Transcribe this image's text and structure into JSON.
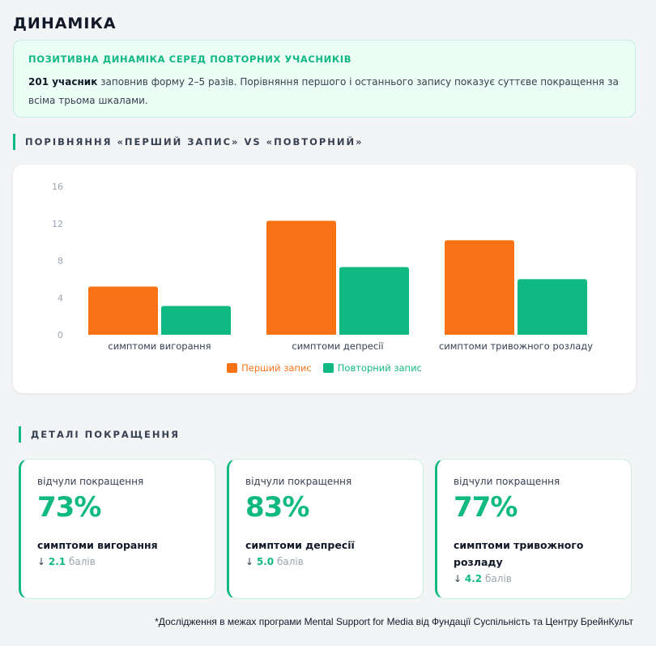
{
  "page": {
    "title": "ДИНАМІКА"
  },
  "highlight": {
    "heading": "ПОЗИТИВНА ДИНАМІКА СЕРЕД ПОВТОРНИХ УЧАСНИКІВ",
    "count": "201 учасник",
    "text": "заповнив форму 2–5 разів. Порівняння першого і останнього запису показує суттєве покращення за всіма трьома шкалами."
  },
  "comparison": {
    "header": "ПОРІВНЯННЯ «ПЕРШИЙ ЗАПИС» VS «ПОВТОРНИЙ»"
  },
  "details": {
    "header": "ДЕТАЛІ ПОКРАЩЕННЯ"
  },
  "chart_data": {
    "type": "bar",
    "categories": [
      "симптоми вигорання",
      "симптоми депресії",
      "симптоми тривожного розладу"
    ],
    "series": [
      {
        "name": "Перший запис",
        "values": [
          5.2,
          12.3,
          10.2
        ],
        "color": "#f97316"
      },
      {
        "name": "Повторний запис",
        "values": [
          3.1,
          7.3,
          6.0
        ],
        "color": "#10b981"
      }
    ],
    "ylim": [
      0,
      16
    ],
    "yticks": [
      "0",
      "4",
      "8",
      "12",
      "16"
    ],
    "grid": false,
    "legend": "bottom-center",
    "title": "",
    "xlabel": "",
    "ylabel": ""
  },
  "cards": [
    {
      "caption": "відчули покращення",
      "percent": "73%",
      "label": "симптоми вигорання",
      "arrow": "↓",
      "delta": "2.1",
      "unit": "балів"
    },
    {
      "caption": "відчули покращення",
      "percent": "83%",
      "label": "симптоми депресії",
      "arrow": "↓",
      "delta": "5.0",
      "unit": "балів"
    },
    {
      "caption": "відчули покращення",
      "percent": "77%",
      "label": "симптоми тривожного розладу",
      "arrow": "↓",
      "delta": "4.2",
      "unit": "балів"
    }
  ],
  "footnote": "*Дослідження в межах програми Mental Support for Media від Фундації Суспільність та Центру БрейнКульт",
  "colors": {
    "accent": "#10b981",
    "orange": "#f97316"
  }
}
